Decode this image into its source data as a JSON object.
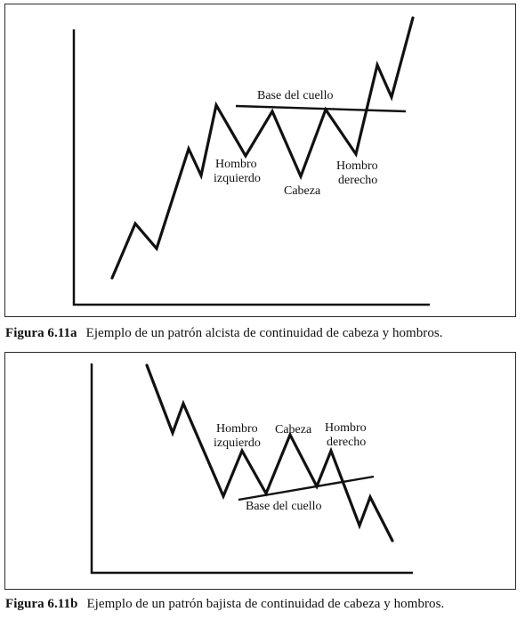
{
  "figure_a": {
    "caption_label": "Figura 6.11a",
    "caption_text": "Ejemplo de un patrón alcista de continuidad de cabeza y hombros.",
    "labels": {
      "neckline": "Base del cuello",
      "left_shoulder_1": "Hombro",
      "left_shoulder_2": "izquierdo",
      "head": "Cabeza",
      "right_shoulder_1": "Hombro",
      "right_shoulder_2": "derecho"
    }
  },
  "figure_b": {
    "caption_label": "Figura 6.11b",
    "caption_text": "Ejemplo de un patrón bajista de continuidad de cabeza y hombros.",
    "labels": {
      "neckline": "Base del cuello",
      "left_shoulder_1": "Hombro",
      "left_shoulder_2": "izquierdo",
      "head": "Cabeza",
      "right_shoulder_1": "Hombro",
      "right_shoulder_2": "derecho"
    }
  }
}
